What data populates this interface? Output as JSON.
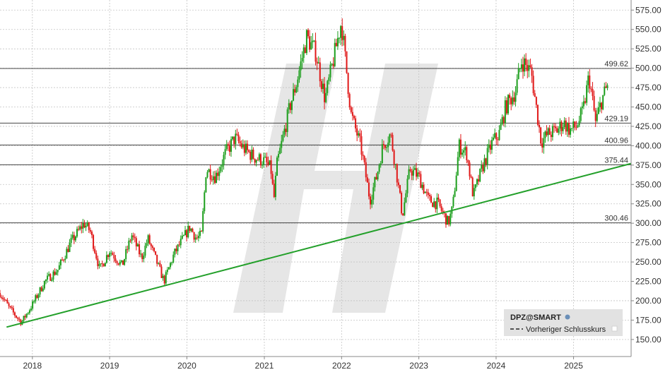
{
  "chart_data": {
    "type": "candlestick",
    "symbol": "DPZ@SMART",
    "legend": {
      "title": "DPZ@SMART",
      "items": [
        {
          "label": "Vorheriger Schlusskurs",
          "style": "dashed"
        }
      ],
      "placement": "bottom-right"
    },
    "y_axis": {
      "position": "right",
      "ylim": [
        128,
        588
      ],
      "ticks": [
        "575.00",
        "550.00",
        "525.00",
        "500.00",
        "475.00",
        "450.00",
        "425.00",
        "400.00",
        "375.00",
        "350.00",
        "325.00",
        "300.00",
        "275.00",
        "250.00",
        "225.00",
        "200.00",
        "175.00",
        "150.00"
      ]
    },
    "x_axis": {
      "xlim": [
        "2017-08-01",
        "2025-09-30"
      ],
      "ticks": [
        {
          "label": "2018",
          "date": "2018-01-01"
        },
        {
          "label": "2019",
          "date": "2019-01-01"
        },
        {
          "label": "2020",
          "date": "2020-01-01"
        },
        {
          "label": "2021",
          "date": "2021-01-01"
        },
        {
          "label": "2022",
          "date": "2022-01-01"
        },
        {
          "label": "2023",
          "date": "2023-01-01"
        },
        {
          "label": "2024",
          "date": "2024-01-01"
        },
        {
          "label": "2025",
          "date": "2025-01-01"
        }
      ]
    },
    "grid": true,
    "colors": {
      "up": "#1c9e1c",
      "down": "#e01818",
      "trendline": "#23a02a",
      "level": "#444444",
      "watermark": "#e6e6e6"
    },
    "horizontal_levels": [
      {
        "value": 499.62,
        "label": "499.62"
      },
      {
        "value": 429.19,
        "label": "429.19"
      },
      {
        "value": 400.96,
        "label": "400.96"
      },
      {
        "value": 375.44,
        "label": "375.44"
      },
      {
        "value": 300.46,
        "label": "300.46"
      }
    ],
    "trendline": {
      "start": {
        "date": "2017-09-01",
        "value": 166
      },
      "end": {
        "date": "2025-09-30",
        "value": 377
      }
    },
    "price_path": [
      [
        "2017-08-01",
        210
      ],
      [
        "2017-09-15",
        190
      ],
      [
        "2017-11-10",
        172
      ],
      [
        "2018-01-01",
        195
      ],
      [
        "2018-03-01",
        225
      ],
      [
        "2018-05-01",
        240
      ],
      [
        "2018-07-01",
        275
      ],
      [
        "2018-09-01",
        300
      ],
      [
        "2018-10-01",
        290
      ],
      [
        "2018-11-15",
        240
      ],
      [
        "2019-01-01",
        265
      ],
      [
        "2019-03-01",
        245
      ],
      [
        "2019-04-15",
        285
      ],
      [
        "2019-06-01",
        255
      ],
      [
        "2019-07-01",
        280
      ],
      [
        "2019-09-15",
        225
      ],
      [
        "2019-11-01",
        260
      ],
      [
        "2020-01-15",
        295
      ],
      [
        "2020-02-15",
        280
      ],
      [
        "2020-03-10",
        285
      ],
      [
        "2020-04-01",
        370
      ],
      [
        "2020-05-15",
        360
      ],
      [
        "2020-07-01",
        390
      ],
      [
        "2020-08-15",
        410
      ],
      [
        "2020-10-01",
        395
      ],
      [
        "2020-11-15",
        385
      ],
      [
        "2021-01-01",
        380
      ],
      [
        "2021-02-01",
        370
      ],
      [
        "2021-02-15",
        330
      ],
      [
        "2021-03-01",
        375
      ],
      [
        "2021-05-01",
        450
      ],
      [
        "2021-06-01",
        480
      ],
      [
        "2021-07-20",
        540
      ],
      [
        "2021-09-01",
        520
      ],
      [
        "2021-10-15",
        460
      ],
      [
        "2021-12-31",
        560
      ],
      [
        "2022-02-15",
        440
      ],
      [
        "2022-04-01",
        400
      ],
      [
        "2022-05-15",
        330
      ],
      [
        "2022-06-15",
        360
      ],
      [
        "2022-07-15",
        400
      ],
      [
        "2022-08-20",
        415
      ],
      [
        "2022-09-15",
        370
      ],
      [
        "2022-10-15",
        310
      ],
      [
        "2022-11-20",
        370
      ],
      [
        "2023-01-01",
        360
      ],
      [
        "2023-02-15",
        330
      ],
      [
        "2023-04-01",
        325
      ],
      [
        "2023-05-20",
        300
      ],
      [
        "2023-06-10",
        320
      ],
      [
        "2023-07-10",
        400
      ],
      [
        "2023-08-15",
        390
      ],
      [
        "2023-09-15",
        335
      ],
      [
        "2023-11-01",
        375
      ],
      [
        "2023-12-15",
        405
      ],
      [
        "2024-01-15",
        415
      ],
      [
        "2024-02-15",
        450
      ],
      [
        "2024-04-01",
        470
      ],
      [
        "2024-05-01",
        510
      ],
      [
        "2024-06-15",
        495
      ],
      [
        "2024-08-01",
        405
      ],
      [
        "2024-09-01",
        415
      ],
      [
        "2024-10-15",
        420
      ],
      [
        "2024-11-15",
        430
      ],
      [
        "2024-12-15",
        420
      ],
      [
        "2025-01-15",
        425
      ],
      [
        "2025-02-15",
        445
      ],
      [
        "2025-03-15",
        490
      ],
      [
        "2025-04-15",
        430
      ],
      [
        "2025-05-15",
        460
      ],
      [
        "2025-06-15",
        480
      ]
    ]
  }
}
